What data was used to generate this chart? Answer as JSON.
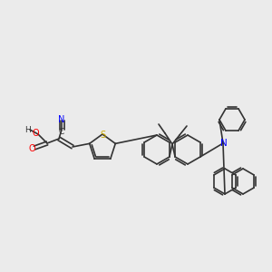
{
  "background_color": "#ebebeb",
  "bond_color": "#333333",
  "title": "",
  "atoms": {
    "N_cyan": {
      "color": "#0000ff",
      "label": "N"
    },
    "C_cyan": {
      "color": "#333333",
      "label": "C"
    },
    "S_thio": {
      "color": "#ccaa00",
      "label": "S"
    },
    "N_amine": {
      "color": "#0000ff",
      "label": "N"
    },
    "O1": {
      "color": "#ff0000",
      "label": "O"
    },
    "O2": {
      "color": "#ff0000",
      "label": "O"
    },
    "H": {
      "color": "#333333",
      "label": "H"
    }
  },
  "figsize": [
    3.0,
    3.0
  ],
  "dpi": 100
}
